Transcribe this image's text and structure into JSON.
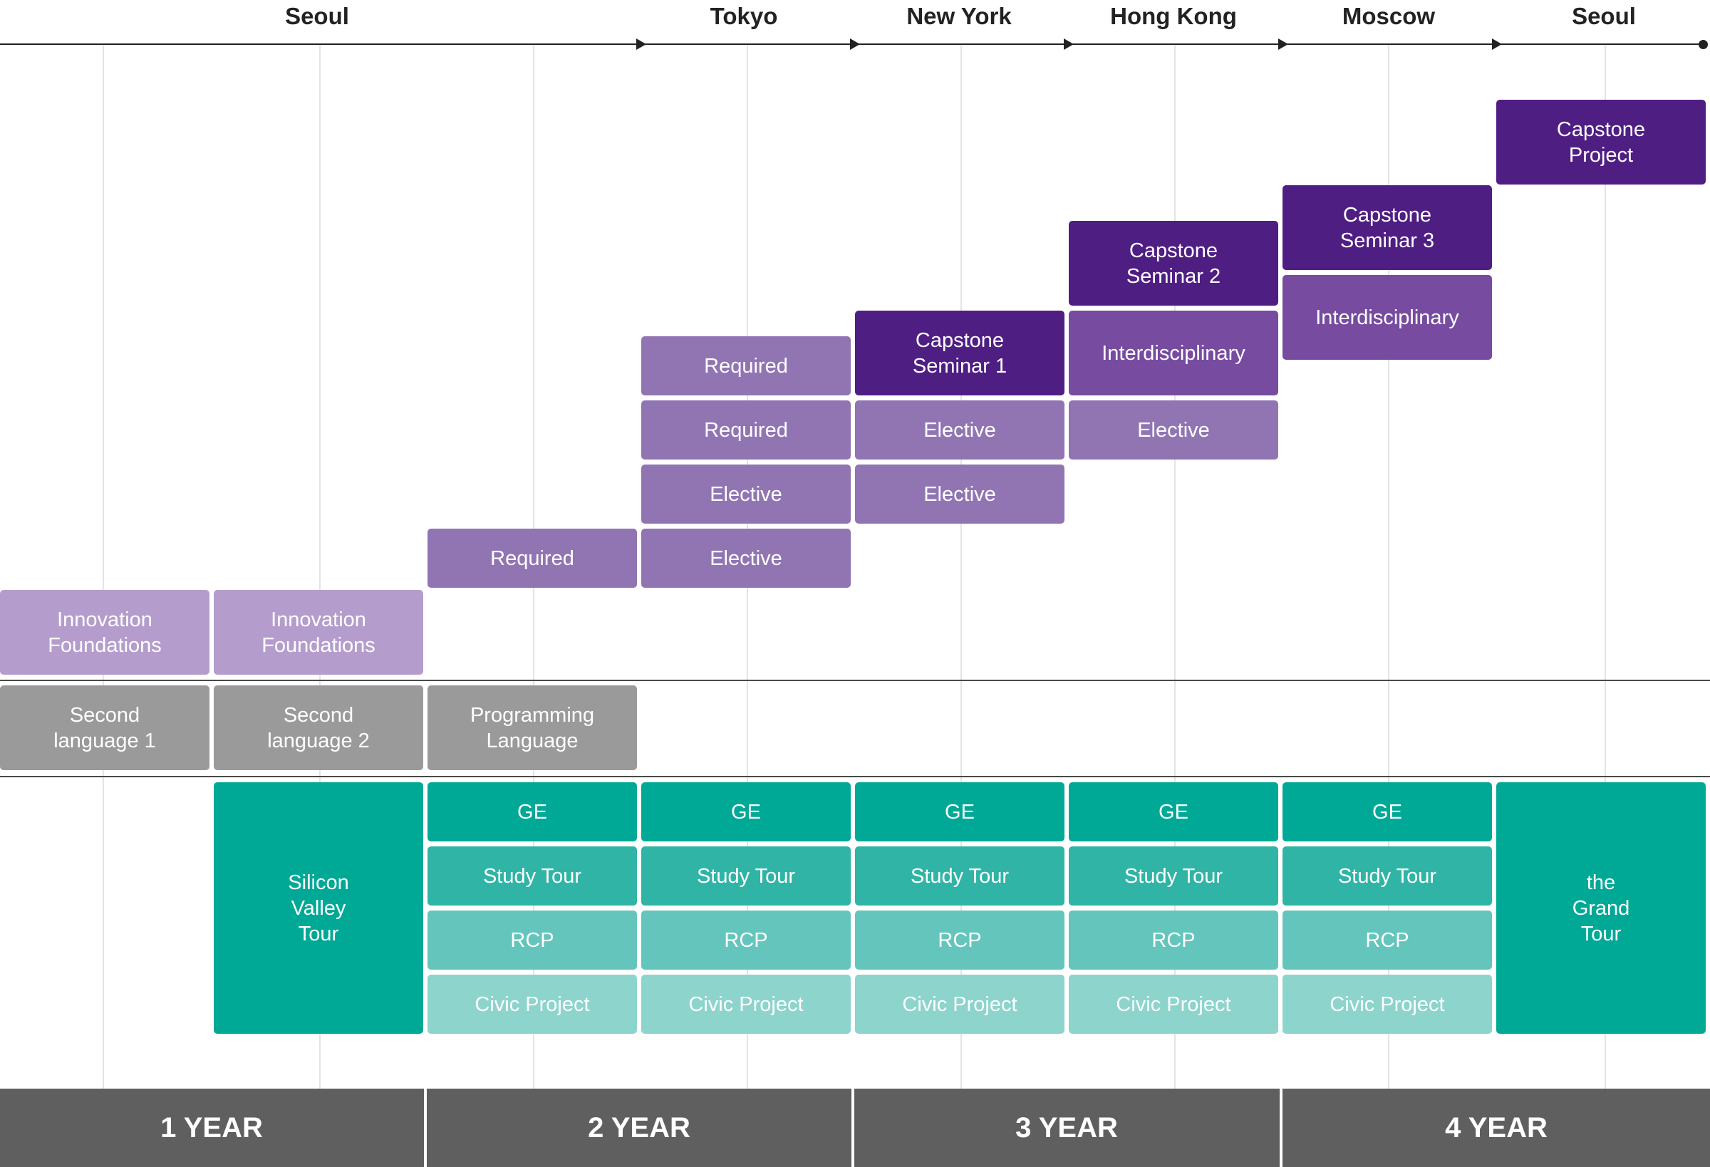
{
  "timeline": {
    "cities": [
      "Seoul",
      "Tokyo",
      "New York",
      "Hong Kong",
      "Moscow",
      "Seoul"
    ]
  },
  "blocks": {
    "capstone_project": "Capstone\nProject",
    "capstone_seminar_3": "Capstone\nSeminar 3",
    "interdisciplinary_y4": "Interdisciplinary",
    "capstone_seminar_2": "Capstone\nSeminar 2",
    "interdisciplinary_y3": "Interdisciplinary",
    "elective_y3b": "Elective",
    "capstone_seminar_1": "Capstone\nSeminar 1",
    "elective_y3a_1": "Elective",
    "elective_y3a_2": "Elective",
    "required_y2b_1": "Required",
    "required_y2b_2": "Required",
    "elective_y2b_1": "Elective",
    "elective_y2b_2": "Elective",
    "required_y2a": "Required",
    "innovation_foundations_1": "Innovation\nFoundations",
    "innovation_foundations_2": "Innovation\nFoundations",
    "second_language_1": "Second\nlanguage 1",
    "second_language_2": "Second\nlanguage 2",
    "programming_language": "Programming\nLanguage",
    "silicon_valley_tour": "Silicon\nValley\nTour",
    "grand_tour": "the\nGrand\nTour",
    "ge": "GE",
    "study_tour": "Study Tour",
    "rcp": "RCP",
    "civic_project": "Civic Project"
  },
  "years": [
    "1 YEAR",
    "2 YEAR",
    "3 YEAR",
    "4 YEAR"
  ],
  "colors": {
    "lavender": "#b49dcc",
    "purple_medium": "#9175b3",
    "purple_mid": "#774b9f",
    "purple_dark": "#4f1e83",
    "gray": "#9a9a9a",
    "teal_1": "#00a896",
    "teal_2": "#30b4a6",
    "teal_3": "#64c5bc",
    "teal_4": "#8dd4cd",
    "year_bar": "#5f5f5f"
  }
}
